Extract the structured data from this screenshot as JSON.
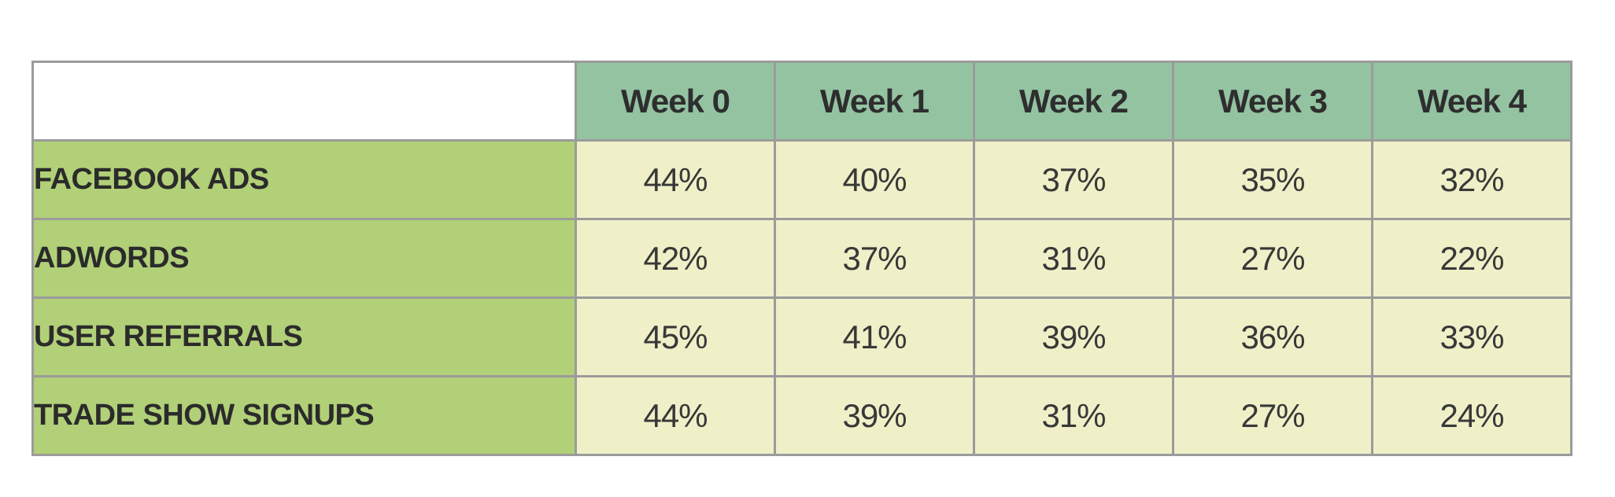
{
  "chart_data": {
    "type": "table",
    "title": "",
    "column_headers": [
      "Week 0",
      "Week 1",
      "Week 2",
      "Week 3",
      "Week 4"
    ],
    "row_labels": [
      "FACEBOOK ADS",
      "ADWORDS",
      "USER REFERRALS",
      "TRADE SHOW SIGNUPS"
    ],
    "series": [
      {
        "name": "FACEBOOK ADS",
        "values": [
          44,
          40,
          37,
          35,
          32
        ]
      },
      {
        "name": "ADWORDS",
        "values": [
          42,
          37,
          31,
          27,
          22
        ]
      },
      {
        "name": "USER REFERRALS",
        "values": [
          45,
          41,
          39,
          36,
          33
        ]
      },
      {
        "name": "TRADE SHOW SIGNUPS",
        "values": [
          44,
          39,
          31,
          27,
          24
        ]
      }
    ],
    "value_unit": "%"
  },
  "table": {
    "column_headers": [
      "Week 0",
      "Week 1",
      "Week 2",
      "Week 3",
      "Week 4"
    ],
    "rows": [
      {
        "label": "FACEBOOK ADS",
        "values": [
          "44%",
          "40%",
          "37%",
          "35%",
          "32%"
        ]
      },
      {
        "label": "ADWORDS",
        "values": [
          "42%",
          "37%",
          "31%",
          "27%",
          "22%"
        ]
      },
      {
        "label": "USER REFERRALS",
        "values": [
          "45%",
          "41%",
          "39%",
          "36%",
          "33%"
        ]
      },
      {
        "label": "TRADE SHOW SIGNUPS",
        "values": [
          "44%",
          "39%",
          "31%",
          "27%",
          "24%"
        ]
      }
    ]
  },
  "colors": {
    "header_bg": "#94c3a2",
    "row_label_bg": "#b1d078",
    "cell_bg": "#eff0c8",
    "border": "#9b9b9b",
    "text": "#2e2e2e",
    "page_bg": "#ffffff"
  }
}
